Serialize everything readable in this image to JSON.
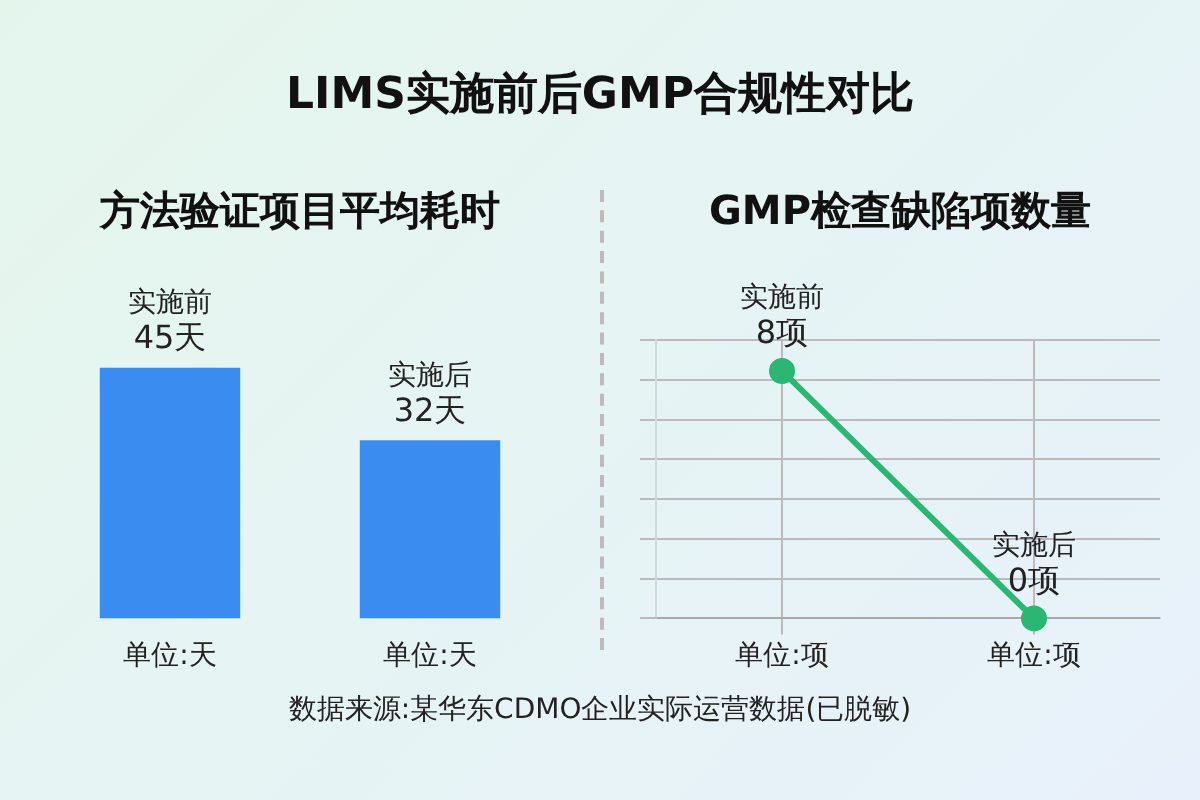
{
  "chart_data": [
    {
      "type": "bar",
      "title": "方法验证项目平均耗时",
      "annotations": [
        "LIMS实施前后GMP合规性对比"
      ],
      "categories": [
        "单位:天",
        "单位:天"
      ],
      "values": [
        45,
        32
      ],
      "color": "#3b8cf0",
      "value_labels": [
        "实施前\n45天",
        "实施后\n32天"
      ],
      "tick_labels": "x",
      "legend": false
    },
    {
      "type": "line",
      "title": "GMP检查缺陷项数量",
      "annotations": [
        "数据来源:某华东CDMO企业实际运营数据(已脱敏)"
      ],
      "categories": [
        "单位:项",
        "单位:项"
      ],
      "values": [
        8,
        0
      ],
      "color": "#2bb673",
      "value_labels": [
        "实施前\n8项",
        "实施后\n0项"
      ],
      "tick_labels": "x",
      "grid": true,
      "marker": "circle",
      "legend": false
    }
  ]
}
